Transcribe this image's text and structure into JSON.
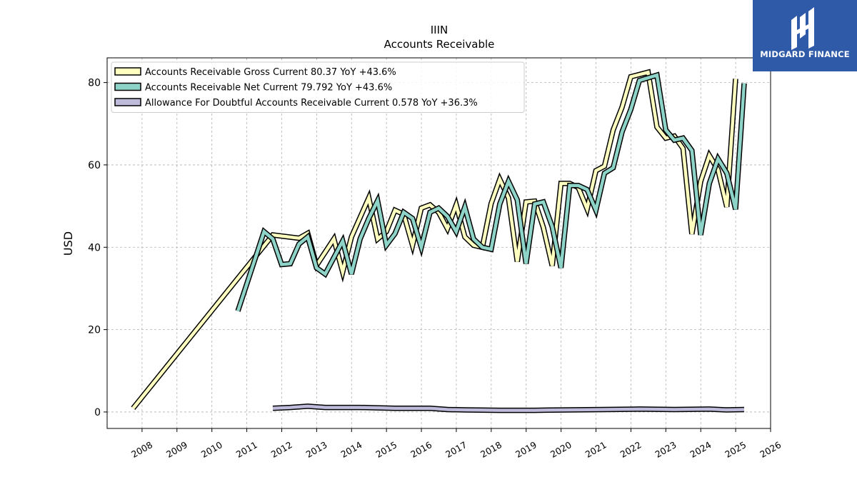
{
  "chart_data": {
    "type": "line",
    "title": "IIIN",
    "subtitle": "Accounts Receivable",
    "ylabel": "USD",
    "xlabel": "",
    "xlim": [
      2007.0,
      2026.0
    ],
    "ylim": [
      -4,
      86
    ],
    "x_ticks": [
      "2008",
      "2009",
      "2010",
      "2011",
      "2012",
      "2013",
      "2014",
      "2015",
      "2016",
      "2017",
      "2018",
      "2019",
      "2020",
      "2021",
      "2022",
      "2023",
      "2024",
      "2025",
      "2026"
    ],
    "y_ticks": [
      "0",
      "20",
      "40",
      "60",
      "80"
    ],
    "grid": true,
    "legend_position": "top-left",
    "series": [
      {
        "name": "Accounts Receivable Gross Current  80.37 YoY +43.6%",
        "color": "#ffffbf",
        "points": [
          [
            "2007-09-30",
            0.9
          ],
          [
            "2011-09-30",
            43.0
          ],
          [
            "2012-06-30",
            42.2
          ],
          [
            "2012-09-30",
            43.4
          ],
          [
            "2012-12-31",
            35.6
          ],
          [
            "2013-06-30",
            42.0
          ],
          [
            "2013-09-30",
            34.0
          ],
          [
            "2013-12-31",
            42.5
          ],
          [
            "2014-06-30",
            52.0
          ],
          [
            "2014-09-30",
            42.0
          ],
          [
            "2014-12-31",
            43.8
          ],
          [
            "2015-03-31",
            49.0
          ],
          [
            "2015-06-30",
            48.0
          ],
          [
            "2015-09-30",
            40.5
          ],
          [
            "2015-12-31",
            49.5
          ],
          [
            "2016-03-31",
            50.3
          ],
          [
            "2016-06-30",
            48.5
          ],
          [
            "2016-09-30",
            44.5
          ],
          [
            "2016-12-31",
            50.3
          ],
          [
            "2017-03-31",
            42.5
          ],
          [
            "2017-06-30",
            40.5
          ],
          [
            "2017-09-30",
            40.0
          ],
          [
            "2017-12-31",
            50.6
          ],
          [
            "2018-03-31",
            56.5
          ],
          [
            "2018-06-30",
            52.0
          ],
          [
            "2018-09-30",
            36.5
          ],
          [
            "2018-12-31",
            51.0
          ],
          [
            "2019-03-31",
            51.2
          ],
          [
            "2019-06-30",
            44.8
          ],
          [
            "2019-09-30",
            35.5
          ],
          [
            "2019-12-31",
            55.5
          ],
          [
            "2020-03-31",
            55.5
          ],
          [
            "2020-06-30",
            54.5
          ],
          [
            "2020-09-30",
            49.3
          ],
          [
            "2020-12-31",
            58.6
          ],
          [
            "2021-03-31",
            59.7
          ],
          [
            "2021-06-30",
            68.5
          ],
          [
            "2021-09-30",
            74.0
          ],
          [
            "2021-12-31",
            81.4
          ],
          [
            "2022-06-30",
            82.5
          ],
          [
            "2022-09-30",
            69.2
          ],
          [
            "2022-12-31",
            66.5
          ],
          [
            "2023-03-31",
            67.0
          ],
          [
            "2023-06-30",
            64.0
          ],
          [
            "2023-09-30",
            43.2
          ],
          [
            "2023-12-31",
            56.0
          ],
          [
            "2024-03-31",
            62.3
          ],
          [
            "2024-06-30",
            58.8
          ],
          [
            "2024-09-30",
            49.8
          ],
          [
            "2024-12-31",
            80.9
          ]
        ]
      },
      {
        "name": "Accounts Receivable Net Current  79.792 YoY +43.6%",
        "color": "#8dd3c7",
        "points": [
          [
            "2010-09-30",
            24.5
          ],
          [
            "2011-06-30",
            43.8
          ],
          [
            "2011-09-30",
            42.0
          ],
          [
            "2011-12-31",
            35.8
          ],
          [
            "2012-03-31",
            36.0
          ],
          [
            "2012-06-30",
            40.8
          ],
          [
            "2012-09-30",
            42.5
          ],
          [
            "2012-12-31",
            35.0
          ],
          [
            "2013-03-31",
            33.5
          ],
          [
            "2013-09-30",
            41.5
          ],
          [
            "2013-12-31",
            33.5
          ],
          [
            "2014-03-31",
            42.0
          ],
          [
            "2014-06-30",
            47.0
          ],
          [
            "2014-09-30",
            51.3
          ],
          [
            "2014-12-31",
            40.5
          ],
          [
            "2015-03-31",
            43.3
          ],
          [
            "2015-06-30",
            48.5
          ],
          [
            "2015-09-30",
            47.0
          ],
          [
            "2015-12-31",
            40.0
          ],
          [
            "2016-03-31",
            48.5
          ],
          [
            "2016-06-30",
            49.5
          ],
          [
            "2016-09-30",
            47.5
          ],
          [
            "2016-12-31",
            43.8
          ],
          [
            "2017-03-31",
            49.8
          ],
          [
            "2017-06-30",
            42.0
          ],
          [
            "2017-09-30",
            40.0
          ],
          [
            "2017-12-31",
            39.5
          ],
          [
            "2018-03-31",
            50.5
          ],
          [
            "2018-06-30",
            56.0
          ],
          [
            "2018-09-30",
            51.5
          ],
          [
            "2018-12-31",
            36.0
          ],
          [
            "2019-03-31",
            50.5
          ],
          [
            "2019-06-30",
            51.0
          ],
          [
            "2019-09-30",
            45.0
          ],
          [
            "2019-12-31",
            35.0
          ],
          [
            "2020-03-31",
            55.0
          ],
          [
            "2020-06-30",
            55.0
          ],
          [
            "2020-09-30",
            54.0
          ],
          [
            "2020-12-31",
            49.0
          ],
          [
            "2021-03-31",
            58.0
          ],
          [
            "2021-06-30",
            59.3
          ],
          [
            "2021-09-30",
            68.0
          ],
          [
            "2021-12-31",
            73.5
          ],
          [
            "2022-03-31",
            80.5
          ],
          [
            "2022-09-30",
            81.8
          ],
          [
            "2022-12-31",
            68.5
          ],
          [
            "2023-03-31",
            66.0
          ],
          [
            "2023-06-30",
            66.5
          ],
          [
            "2023-09-30",
            63.5
          ],
          [
            "2023-12-31",
            43.0
          ],
          [
            "2024-03-31",
            55.5
          ],
          [
            "2024-06-30",
            61.5
          ],
          [
            "2024-09-30",
            58.0
          ],
          [
            "2024-12-31",
            49.2
          ],
          [
            "2025-03-31",
            79.8
          ]
        ]
      },
      {
        "name": "Allowance For Doubtful Accounts Receivable Current  0.578 YoY +36.3%",
        "color": "#bebada",
        "points": [
          [
            "2011-09-30",
            0.9
          ],
          [
            "2012-03-31",
            1.1
          ],
          [
            "2012-09-30",
            1.4
          ],
          [
            "2013-03-31",
            1.1
          ],
          [
            "2014-03-31",
            1.1
          ],
          [
            "2015-03-31",
            0.9
          ],
          [
            "2016-03-31",
            0.9
          ],
          [
            "2016-09-30",
            0.6
          ],
          [
            "2017-03-31",
            0.5
          ],
          [
            "2018-03-31",
            0.4
          ],
          [
            "2019-03-31",
            0.4
          ],
          [
            "2020-03-31",
            0.5
          ],
          [
            "2021-03-31",
            0.6
          ],
          [
            "2022-03-31",
            0.7
          ],
          [
            "2023-03-31",
            0.6
          ],
          [
            "2024-03-31",
            0.7
          ],
          [
            "2024-09-30",
            0.5
          ],
          [
            "2025-03-31",
            0.6
          ]
        ]
      }
    ]
  },
  "logo": {
    "text": "MIDGARD FINANCE"
  }
}
